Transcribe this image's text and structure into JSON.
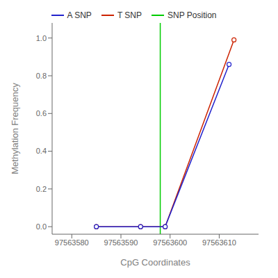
{
  "chart_data": {
    "type": "line",
    "xlabel": "CpG Coordinates",
    "ylabel": "Methylation Frequency",
    "series": [
      {
        "name": "A SNP",
        "color": "#2222cc",
        "marker": "circle",
        "x": [
          97563585,
          97563594,
          97563599,
          97563612
        ],
        "values": [
          0.0,
          0.0,
          0.0,
          0.86
        ]
      },
      {
        "name": "T SNP",
        "color": "#cc2200",
        "marker": "circle",
        "x": [
          97563585,
          97563594,
          97563599,
          97563613
        ],
        "values": [
          0.0,
          0.0,
          0.0,
          0.99
        ]
      }
    ],
    "vline": {
      "name": "SNP Position",
      "x": 97563598,
      "color": "#00cc00"
    },
    "xlim": [
      97563576,
      97563618
    ],
    "ylim": [
      -0.04,
      1.08
    ],
    "xticks": [
      97563580,
      97563590,
      97563600,
      97563610
    ],
    "yticks": [
      {
        "value": 0.0,
        "label": "0.0"
      },
      0.2,
      0.4,
      0.6,
      0.8,
      {
        "value": 1.0,
        "label": "1.0"
      }
    ],
    "grid": false,
    "legend": "top"
  }
}
